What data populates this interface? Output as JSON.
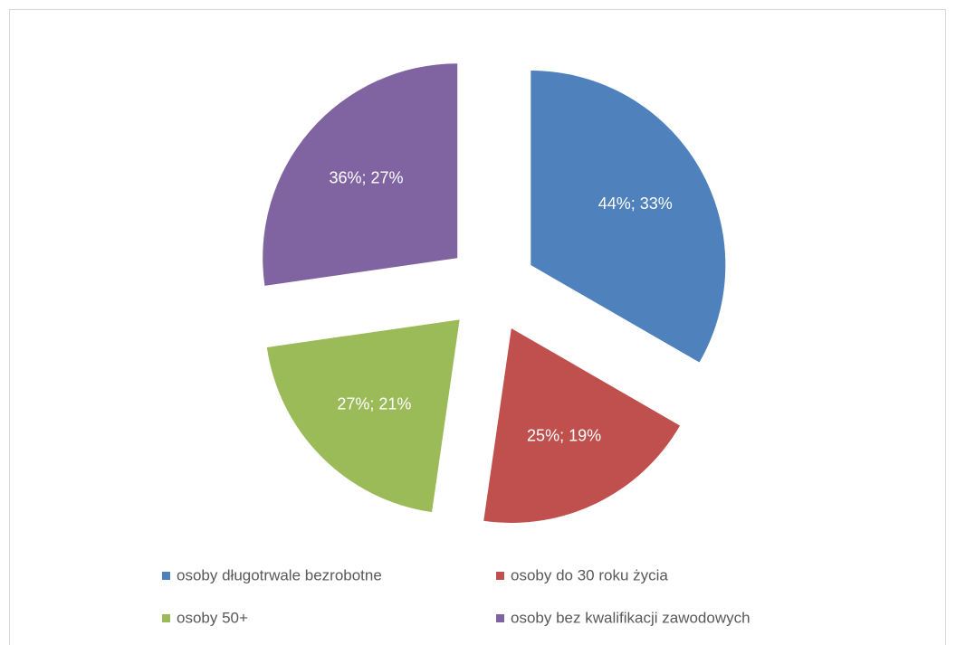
{
  "chart_data": {
    "type": "pie",
    "categories": [
      "osoby długotrwale bezrobotne",
      "osoby do 30 roku życia",
      "osoby 50+",
      "osoby bez kwalifikacji zawodowych"
    ],
    "values": [
      44,
      25,
      27,
      36
    ],
    "value_labels": [
      "44%; 33%",
      "25%; 19%",
      "27%; 21%",
      "36%; 27%"
    ],
    "colors": [
      "#4f81bd",
      "#c0504d",
      "#9bbb59",
      "#8064a2"
    ],
    "legend": "bottom",
    "exploded": true
  }
}
